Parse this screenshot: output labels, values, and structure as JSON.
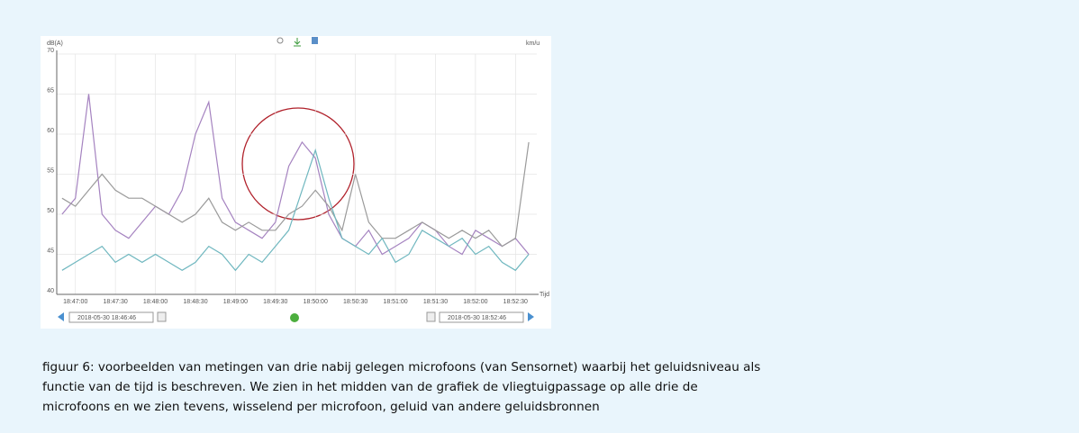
{
  "chart_data": {
    "type": "line",
    "y_label": "dB(A)",
    "y2_label": "km/u",
    "x_label": "Tijd",
    "x": [
      "18:46:50",
      "18:47:00",
      "18:47:10",
      "18:47:20",
      "18:47:30",
      "18:47:40",
      "18:47:50",
      "18:48:00",
      "18:48:10",
      "18:48:20",
      "18:48:30",
      "18:48:40",
      "18:48:50",
      "18:49:00",
      "18:49:10",
      "18:49:20",
      "18:49:30",
      "18:49:40",
      "18:49:50",
      "18:50:00",
      "18:50:10",
      "18:50:20",
      "18:50:30",
      "18:50:40",
      "18:50:50",
      "18:51:00",
      "18:51:10",
      "18:51:20",
      "18:51:30",
      "18:51:40",
      "18:51:50",
      "18:52:00",
      "18:52:10",
      "18:52:20",
      "18:52:30",
      "18:52:40"
    ],
    "series": [
      {
        "color": "#a583c0",
        "values": [
          50,
          52,
          65,
          50,
          48,
          47,
          49,
          51,
          50,
          53,
          60,
          64,
          52,
          49,
          48,
          47,
          49,
          56,
          59,
          57,
          50,
          47,
          46,
          48,
          45,
          46,
          47,
          49,
          48,
          46,
          45,
          48,
          47,
          46,
          47,
          45
        ]
      },
      {
        "color": "#9a9a9a",
        "values": [
          52,
          51,
          53,
          55,
          53,
          52,
          52,
          51,
          50,
          49,
          50,
          52,
          49,
          48,
          49,
          48,
          48,
          50,
          51,
          53,
          51,
          48,
          55,
          49,
          47,
          47,
          48,
          49,
          48,
          47,
          48,
          47,
          48,
          46,
          47,
          59
        ]
      },
      {
        "color": "#6fb7bf",
        "values": [
          43,
          44,
          45,
          46,
          44,
          45,
          44,
          45,
          44,
          43,
          44,
          46,
          45,
          43,
          45,
          44,
          46,
          48,
          53,
          58,
          52,
          47,
          46,
          45,
          47,
          44,
          45,
          48,
          47,
          46,
          47,
          45,
          46,
          44,
          43,
          45
        ]
      }
    ],
    "xlim": [
      "18:46:46",
      "18:52:46"
    ],
    "xticks": [
      "18:47:00",
      "18:47:30",
      "18:48:00",
      "18:48:30",
      "18:49:00",
      "18:49:30",
      "18:50:00",
      "18:50:30",
      "18:51:00",
      "18:51:30",
      "18:52:00",
      "18:52:30"
    ],
    "ylim": [
      40,
      70
    ],
    "yticks": [
      40,
      45,
      50,
      55,
      60,
      65,
      70
    ],
    "grid": true,
    "start_datetime": "2018-05-30 18:46:46",
    "end_datetime": "2018-05-30 18:52:46"
  },
  "caption": [
    "figuur 6: voorbeelden van metingen van drie nabij gelegen microfoons (van Sensornet) waarbij het geluidsniveau als",
    "functie van de tijd is beschreven. We zien in het midden van de grafiek de vliegtuigpassage op alle drie de",
    "microfoons en we zien tevens, wisselend per microfoon, geluid van andere geluidsbronnen"
  ]
}
